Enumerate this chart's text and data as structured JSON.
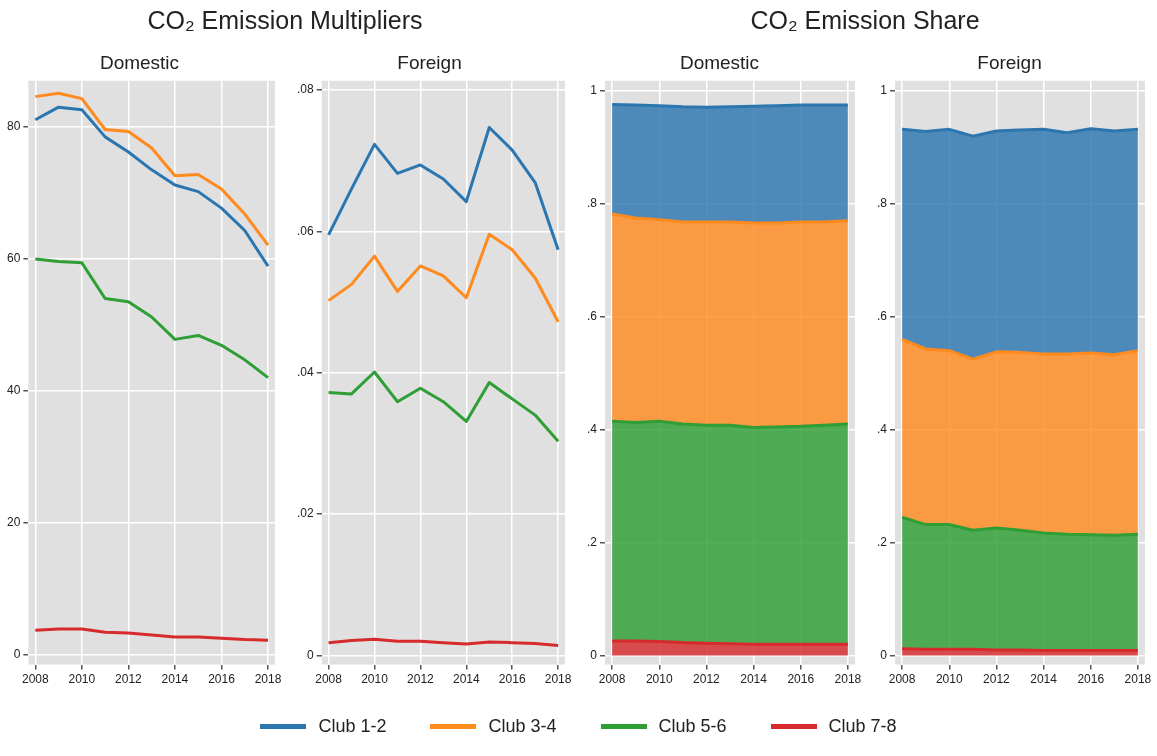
{
  "chart_data": [
    {
      "type": "line",
      "title": "CO₂ Emission Multipliers",
      "subtitle": "Domestic",
      "x": [
        2008,
        2009,
        2010,
        2011,
        2012,
        2013,
        2014,
        2015,
        2016,
        2017,
        2018
      ],
      "xlim": [
        2007.7,
        2018.3
      ],
      "xticks": [
        2008,
        2010,
        2012,
        2014,
        2016,
        2018
      ],
      "ylim": [
        -1.5,
        87
      ],
      "yticks": [
        0,
        20,
        40,
        60,
        80
      ],
      "grid": true,
      "legend": "bottom",
      "series": [
        {
          "name": "Club 1-2",
          "color": "#2c76b0",
          "values": [
            81.1,
            83,
            82.6,
            78.5,
            76.2,
            73.5,
            71.2,
            70.2,
            67.7,
            64.3,
            58.9
          ]
        },
        {
          "name": "Club 3-4",
          "color": "#ff8a1e",
          "values": [
            84.6,
            85.1,
            84.3,
            79.6,
            79.3,
            76.8,
            72.6,
            72.8,
            70.6,
            66.8,
            62.1
          ]
        },
        {
          "name": "Club 5-6",
          "color": "#2e9e35",
          "values": [
            60,
            59.6,
            59.4,
            54,
            53.5,
            51.2,
            47.8,
            48.4,
            46.9,
            44.7,
            42
          ]
        },
        {
          "name": "Club 7-8",
          "color": "#d62a2c",
          "values": [
            3.7,
            3.9,
            3.9,
            3.4,
            3.3,
            3.0,
            2.7,
            2.7,
            2.5,
            2.3,
            2.2
          ]
        }
      ]
    },
    {
      "type": "line",
      "subtitle": "Foreign",
      "x": [
        2008,
        2009,
        2010,
        2011,
        2012,
        2013,
        2014,
        2015,
        2016,
        2017,
        2018
      ],
      "xlim": [
        2007.7,
        2018.3
      ],
      "xticks": [
        2008,
        2010,
        2012,
        2014,
        2016,
        2018
      ],
      "ylim": [
        -0.0013,
        0.0813
      ],
      "yticks": [
        0,
        {
          "value": 0.02,
          "label": ".02"
        },
        {
          "value": 0.04,
          "label": ".04"
        },
        {
          "value": 0.06,
          "label": ".06"
        },
        {
          "value": 0.08,
          "label": ".08"
        }
      ],
      "grid": true,
      "series": [
        {
          "color": "#2c76b0",
          "values": [
            0.0595,
            0.066,
            0.0723,
            0.0682,
            0.0694,
            0.0674,
            0.0642,
            0.0747,
            0.0715,
            0.0669,
            0.0574
          ]
        },
        {
          "color": "#ff8a1e",
          "values": [
            0.0502,
            0.0525,
            0.0565,
            0.0515,
            0.0551,
            0.0537,
            0.0506,
            0.0596,
            0.0574,
            0.0534,
            0.0472
          ]
        },
        {
          "color": "#2e9e35",
          "values": [
            0.0372,
            0.037,
            0.0401,
            0.0359,
            0.0378,
            0.0359,
            0.0331,
            0.0386,
            0.0363,
            0.034,
            0.0303
          ]
        },
        {
          "color": "#d62a2c",
          "values": [
            0.0018,
            0.0021,
            0.0023,
            0.002,
            0.002,
            0.0018,
            0.0016,
            0.0019,
            0.0018,
            0.0017,
            0.0014
          ]
        }
      ]
    },
    {
      "type": "area",
      "stacked": true,
      "title": "CO₂ Emission Share",
      "subtitle": "Domestic",
      "x": [
        2008,
        2009,
        2010,
        2011,
        2012,
        2013,
        2014,
        2015,
        2016,
        2017,
        2018
      ],
      "xlim": [
        2007.7,
        2018.3
      ],
      "xticks": [
        2008,
        2010,
        2012,
        2014,
        2016,
        2018
      ],
      "ylim": [
        -0.016,
        1.018
      ],
      "yticks": [
        0,
        {
          "value": 0.2,
          "label": ".2"
        },
        {
          "value": 0.4,
          "label": ".4"
        },
        {
          "value": 0.6,
          "label": ".6"
        },
        {
          "value": 0.8,
          "label": ".8"
        },
        1
      ],
      "grid": true,
      "series": [
        {
          "color": "#d62a2c",
          "values": [
            0.026,
            0.026,
            0.025,
            0.023,
            0.022,
            0.021,
            0.02,
            0.02,
            0.02,
            0.02,
            0.02
          ]
        },
        {
          "color": "#2e9e35",
          "values": [
            0.389,
            0.387,
            0.39,
            0.387,
            0.386,
            0.387,
            0.384,
            0.385,
            0.386,
            0.388,
            0.39
          ]
        },
        {
          "color": "#ff8a1e",
          "values": [
            0.367,
            0.362,
            0.357,
            0.358,
            0.36,
            0.36,
            0.362,
            0.361,
            0.362,
            0.36,
            0.36
          ]
        },
        {
          "color": "#2c76b0",
          "values": [
            0.194,
            0.2,
            0.202,
            0.204,
            0.203,
            0.204,
            0.207,
            0.208,
            0.207,
            0.207,
            0.205
          ]
        }
      ]
    },
    {
      "type": "area",
      "stacked": true,
      "subtitle": "Foreign",
      "x": [
        2008,
        2009,
        2010,
        2011,
        2012,
        2013,
        2014,
        2015,
        2016,
        2017,
        2018
      ],
      "xlim": [
        2007.7,
        2018.3
      ],
      "xticks": [
        2008,
        2010,
        2012,
        2014,
        2016,
        2018
      ],
      "ylim": [
        -0.016,
        1.018
      ],
      "yticks": [
        0,
        {
          "value": 0.2,
          "label": ".2"
        },
        {
          "value": 0.4,
          "label": ".4"
        },
        {
          "value": 0.6,
          "label": ".6"
        },
        {
          "value": 0.8,
          "label": ".8"
        },
        1
      ],
      "grid": true,
      "series": [
        {
          "color": "#d62a2c",
          "values": [
            0.012,
            0.011,
            0.011,
            0.011,
            0.01,
            0.01,
            0.009,
            0.009,
            0.009,
            0.009,
            0.009
          ]
        },
        {
          "color": "#2e9e35",
          "values": [
            0.233,
            0.221,
            0.221,
            0.211,
            0.216,
            0.212,
            0.208,
            0.206,
            0.205,
            0.204,
            0.206
          ]
        },
        {
          "color": "#ff8a1e",
          "values": [
            0.315,
            0.311,
            0.308,
            0.303,
            0.312,
            0.315,
            0.317,
            0.319,
            0.322,
            0.32,
            0.325
          ]
        },
        {
          "color": "#2c76b0",
          "values": [
            0.372,
            0.385,
            0.392,
            0.395,
            0.391,
            0.394,
            0.398,
            0.392,
            0.397,
            0.396,
            0.392
          ]
        }
      ]
    }
  ]
}
